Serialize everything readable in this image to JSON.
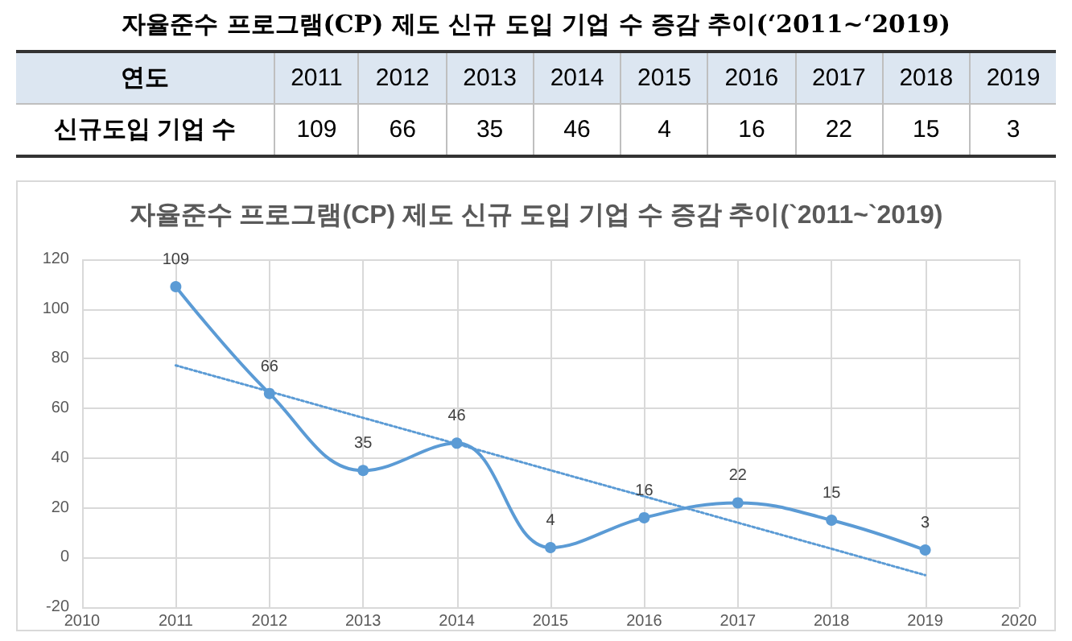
{
  "chart_data": {
    "type": "line",
    "title": "자율준수 프로그램(CP) 제도 신규 도입 기업 수 증감 추이(‘2011~‘2019)",
    "subtitle": "자율준수 프로그램(CP) 제도 신규 도입 기업 수 증감 추이(`2011~`2019)",
    "annotations": [
      "연도",
      "신규도입 기업 수"
    ],
    "categories": [
      "2010",
      "2011",
      "2012",
      "2013",
      "2014",
      "2015",
      "2016",
      "2017",
      "2018",
      "2019",
      "2020"
    ],
    "series": [
      {
        "color": "#5b9bd5",
        "values": [
          null,
          109,
          66,
          35,
          46,
          4,
          16,
          22,
          15,
          3,
          null
        ],
        "marker": "circle",
        "value_labels": [
          null,
          "109",
          "66",
          "35",
          "46",
          "4",
          "16",
          "22",
          "15",
          "3",
          null
        ]
      },
      {
        "type": "line",
        "color": "#5b9bd5",
        "values": [
          null,
          77.3,
          66.8,
          56.2,
          45.7,
          35.1,
          24.6,
          14,
          3.5,
          -7.1,
          null
        ],
        "line_style": "dotted",
        "marker": "none"
      }
    ],
    "ylim": [
      -20,
      120
    ],
    "yticks": [
      -20,
      0,
      20,
      40,
      60,
      80,
      100,
      120
    ],
    "grid": true
  }
}
